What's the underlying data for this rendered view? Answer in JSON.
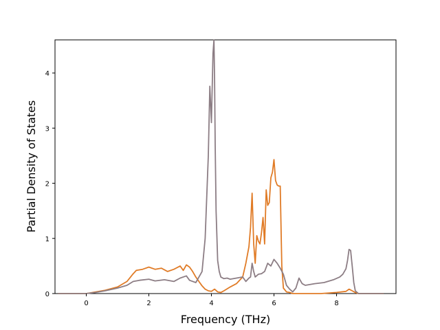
{
  "chart_data": {
    "type": "line",
    "title": "",
    "xlabel": "Frequency (THz)",
    "ylabel": "Partial Density of States",
    "xlim": [
      -1.0,
      9.9
    ],
    "ylim": [
      0,
      4.6
    ],
    "xticks": [
      0,
      2,
      4,
      6,
      8
    ],
    "yticks": [
      0,
      1,
      2,
      3,
      4
    ],
    "grid": false,
    "legend": "none",
    "series": [
      {
        "color": "#e07b26",
        "x": [
          -0.9,
          0.0,
          0.3,
          0.6,
          1.0,
          1.3,
          1.5,
          1.6,
          1.8,
          2.0,
          2.2,
          2.4,
          2.6,
          2.8,
          3.0,
          3.1,
          3.2,
          3.3,
          3.4,
          3.5,
          3.6,
          3.7,
          3.8,
          3.9,
          4.0,
          4.1,
          4.2,
          4.3,
          4.4,
          4.6,
          4.8,
          5.0,
          5.1,
          5.2,
          5.25,
          5.3,
          5.35,
          5.4,
          5.45,
          5.5,
          5.55,
          5.6,
          5.65,
          5.7,
          5.75,
          5.8,
          5.85,
          5.9,
          5.95,
          6.0,
          6.05,
          6.1,
          6.15,
          6.2,
          6.25,
          6.3,
          6.4,
          6.5,
          6.6,
          6.7,
          6.8,
          7.0,
          7.5,
          8.0,
          8.3,
          8.4,
          8.5,
          8.6,
          8.7,
          9.0,
          9.5
        ],
        "y": [
          0.0,
          0.0,
          0.03,
          0.06,
          0.12,
          0.22,
          0.36,
          0.42,
          0.44,
          0.48,
          0.44,
          0.46,
          0.4,
          0.44,
          0.5,
          0.42,
          0.52,
          0.48,
          0.4,
          0.3,
          0.22,
          0.14,
          0.08,
          0.05,
          0.04,
          0.08,
          0.03,
          0.02,
          0.05,
          0.12,
          0.18,
          0.3,
          0.55,
          0.85,
          1.2,
          1.82,
          0.9,
          0.55,
          1.05,
          0.95,
          0.9,
          1.1,
          1.38,
          0.9,
          1.88,
          1.6,
          1.65,
          2.1,
          2.2,
          2.43,
          2.05,
          1.97,
          1.95,
          1.95,
          0.5,
          0.1,
          0.03,
          0.02,
          0.0,
          0.0,
          0.0,
          0.0,
          0.0,
          0.02,
          0.04,
          0.08,
          0.05,
          0.02,
          0.0,
          0.0,
          0.0
        ]
      },
      {
        "color": "#8c7d84",
        "x": [
          -0.9,
          0.0,
          0.3,
          0.6,
          1.0,
          1.3,
          1.5,
          1.7,
          2.0,
          2.2,
          2.5,
          2.8,
          3.0,
          3.2,
          3.3,
          3.5,
          3.7,
          3.8,
          3.9,
          3.95,
          4.0,
          4.05,
          4.08,
          4.1,
          4.12,
          4.15,
          4.2,
          4.25,
          4.3,
          4.4,
          4.5,
          4.6,
          4.8,
          5.0,
          5.1,
          5.2,
          5.25,
          5.3,
          5.35,
          5.4,
          5.5,
          5.6,
          5.7,
          5.8,
          5.9,
          6.0,
          6.1,
          6.2,
          6.3,
          6.4,
          6.5,
          6.6,
          6.7,
          6.8,
          6.9,
          7.0,
          7.3,
          7.6,
          7.9,
          8.1,
          8.2,
          8.3,
          8.35,
          8.4,
          8.45,
          8.5,
          8.55,
          8.6,
          8.7,
          9.0,
          9.5
        ],
        "y": [
          0.0,
          0.0,
          0.02,
          0.05,
          0.1,
          0.15,
          0.22,
          0.24,
          0.26,
          0.23,
          0.25,
          0.22,
          0.28,
          0.32,
          0.24,
          0.2,
          0.4,
          1.0,
          2.5,
          3.76,
          3.1,
          4.35,
          4.6,
          3.9,
          2.7,
          1.5,
          0.6,
          0.4,
          0.3,
          0.27,
          0.28,
          0.26,
          0.28,
          0.3,
          0.22,
          0.28,
          0.3,
          0.55,
          0.4,
          0.3,
          0.35,
          0.36,
          0.4,
          0.55,
          0.5,
          0.62,
          0.55,
          0.46,
          0.35,
          0.15,
          0.08,
          0.03,
          0.1,
          0.28,
          0.18,
          0.15,
          0.18,
          0.2,
          0.25,
          0.3,
          0.35,
          0.45,
          0.6,
          0.8,
          0.78,
          0.5,
          0.2,
          0.05,
          0.0,
          0.0,
          0.0
        ]
      }
    ]
  }
}
